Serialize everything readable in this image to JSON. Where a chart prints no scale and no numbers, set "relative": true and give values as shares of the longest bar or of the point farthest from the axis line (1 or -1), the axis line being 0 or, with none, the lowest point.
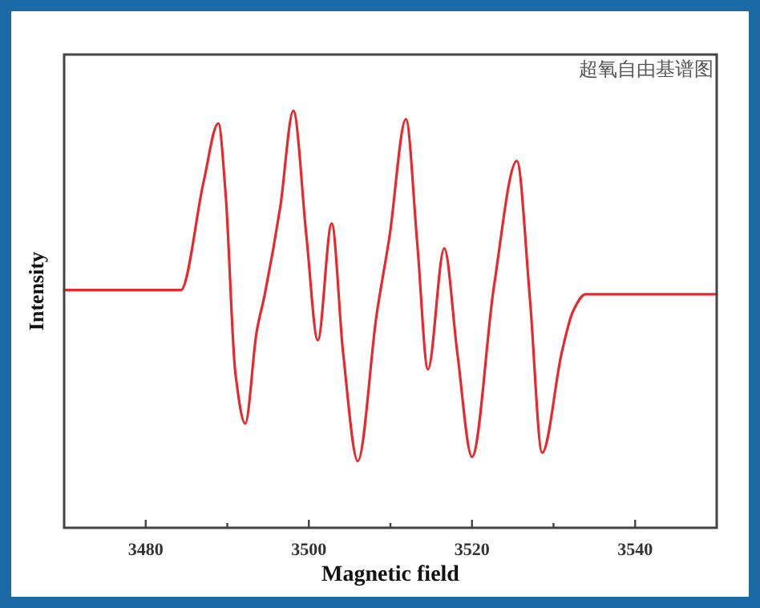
{
  "chart_data": {
    "type": "line",
    "title": "超氧自由基谱图",
    "xlabel": "Magnetic field",
    "ylabel": "Intensity",
    "relative": true,
    "xlim": [
      3470,
      3550
    ],
    "xticks": [
      3480,
      {
        "value": 3490,
        "label": null
      },
      3500,
      {
        "value": 3510,
        "label": null
      },
      3520,
      {
        "value": 3530,
        "label": null
      },
      3540
    ],
    "tick_labels": "x",
    "marker": "none",
    "line_style": "solid",
    "series": [
      {
        "color": "#e8282c",
        "x": [
          3470.0,
          3477.8,
          3484.3,
          3487.1,
          3488.9,
          3489.8,
          3491.0,
          3492.2,
          3493.6,
          3494.6,
          3496.5,
          3498.1,
          3499.7,
          3501.1,
          3502.8,
          3504.2,
          3506.0,
          3508.3,
          3509.9,
          3511.9,
          3513.3,
          3514.6,
          3516.6,
          3518.2,
          3520.0,
          3522.7,
          3525.5,
          3527.1,
          3528.6,
          3531.0,
          3532.4,
          3533.9,
          3540.8,
          3550.0
        ],
        "values": [
          0.57,
          0.57,
          0.57,
          0.83,
          0.97,
          0.8,
          0.37,
          0.25,
          0.47,
          0.56,
          0.77,
          1.0,
          0.7,
          0.45,
          0.73,
          0.42,
          0.16,
          0.51,
          0.7,
          0.98,
          0.68,
          0.38,
          0.67,
          0.42,
          0.17,
          0.58,
          0.88,
          0.55,
          0.18,
          0.42,
          0.52,
          0.56,
          0.56,
          0.56
        ]
      }
    ]
  }
}
